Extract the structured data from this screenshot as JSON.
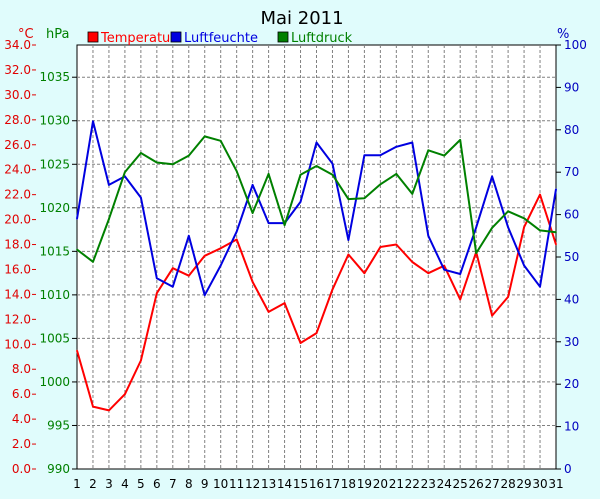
{
  "chart_data": {
    "type": "line",
    "title": "Mai 2011",
    "x": [
      "1",
      "2",
      "3",
      "4",
      "5",
      "6",
      "7",
      "8",
      "9",
      "10",
      "11",
      "12",
      "13",
      "14",
      "15",
      "16",
      "17",
      "18",
      "19",
      "20",
      "21",
      "22",
      "23",
      "24",
      "25",
      "26",
      "27",
      "28",
      "29",
      "30",
      "31"
    ],
    "axes": {
      "temperature": {
        "unit": "°C",
        "min": 0,
        "max": 34,
        "ticks": [
          "0.0",
          "2.0",
          "4.0",
          "6.0",
          "8.0",
          "10.0",
          "12.0",
          "14.0",
          "16.0",
          "18.0",
          "20.0",
          "22.0",
          "24.0",
          "26.0",
          "28.0",
          "30.0",
          "32.0",
          "34.0"
        ],
        "color": "#e00000"
      },
      "pressure": {
        "unit": "hPa",
        "min": 990,
        "max": 1038.7,
        "ticks": [
          "990",
          "995",
          "1000",
          "1005",
          "1010",
          "1015",
          "1020",
          "1025",
          "1030",
          "1035"
        ],
        "color": "#008000"
      },
      "humidity": {
        "unit": "%",
        "min": 0,
        "max": 100,
        "ticks": [
          "0",
          "10",
          "20",
          "30",
          "40",
          "50",
          "60",
          "70",
          "80",
          "90",
          "100"
        ],
        "color": "#0000c0"
      }
    },
    "series": [
      {
        "name": "Temperatur",
        "axis": "temperature",
        "color": "#ff0000",
        "values": [
          9.5,
          5.0,
          4.7,
          6.0,
          8.7,
          14.1,
          16.1,
          15.5,
          17.1,
          17.7,
          18.4,
          15.0,
          12.6,
          13.3,
          10.1,
          10.9,
          14.4,
          17.2,
          15.7,
          17.8,
          18.0,
          16.6,
          15.7,
          16.3,
          13.6,
          17.4,
          12.3,
          13.8,
          19.4,
          22.0,
          18.0
        ]
      },
      {
        "name": "Luftfeuchte",
        "axis": "humidity",
        "color": "#0000e0",
        "values": [
          59,
          82,
          67,
          69,
          64,
          45,
          43,
          55,
          41,
          48,
          56,
          67,
          58,
          58,
          63,
          77,
          72,
          54,
          74,
          74,
          76,
          77,
          55,
          47,
          46,
          57,
          69,
          57,
          48,
          43,
          66
        ]
      },
      {
        "name": "Luftdruck",
        "axis": "pressure",
        "color": "#008000",
        "values": [
          1015.2,
          1013.8,
          1018.7,
          1024.1,
          1026.3,
          1025.2,
          1025.0,
          1026.0,
          1028.2,
          1027.7,
          1024.2,
          1019.4,
          1023.9,
          1018.0,
          1023.8,
          1024.8,
          1023.8,
          1021.0,
          1021.1,
          1022.7,
          1023.9,
          1021.6,
          1026.6,
          1026.0,
          1027.8,
          1014.8,
          1017.7,
          1019.6,
          1018.8,
          1017.4,
          1017.2
        ]
      }
    ]
  },
  "labels": {
    "unit_celsius": "°C",
    "unit_hpa": "hPa",
    "unit_percent": "%"
  },
  "colors": {
    "background": "#e0fcfc",
    "plot_background": "#ffffff",
    "grid": "#808080"
  }
}
